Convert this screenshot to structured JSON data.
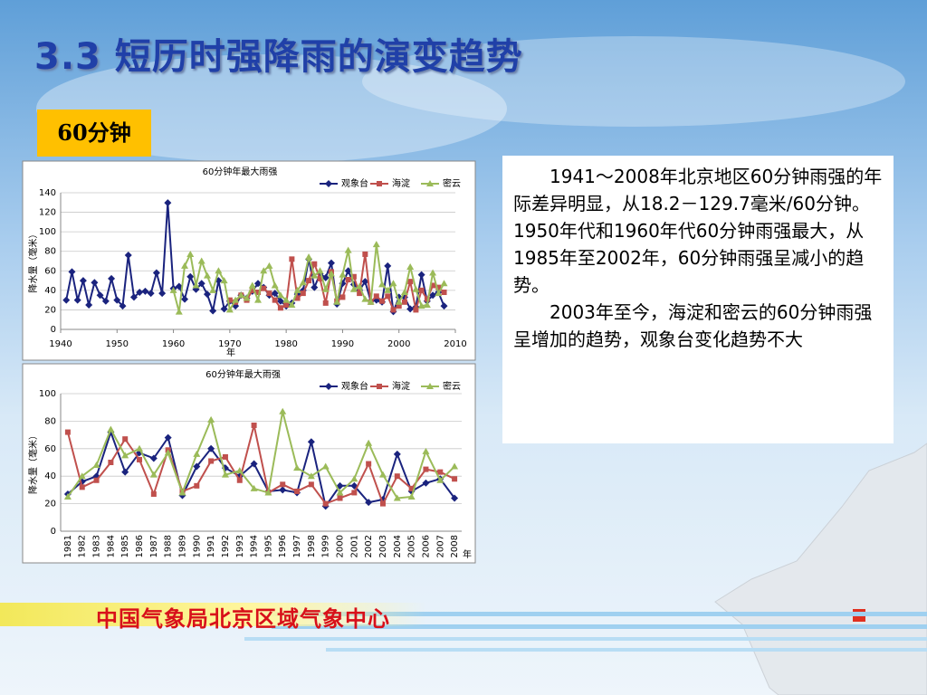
{
  "title": "3.3 短历时强降雨的演变趋势",
  "tag": "60分钟",
  "paragraphs": [
    "1941～2008年北京地区60分钟雨强的年际差异明显，从18.2－129.7毫米/60分钟。1950年代和1960年代60分钟雨强最大，从1985年至2002年，60分钟雨强呈减小的趋势。",
    "2003年至今，海淀和密云的60分钟雨强呈增加的趋势，观象台变化趋势不大"
  ],
  "footer": "中国气象局北京区域气象中心",
  "chart_data": [
    {
      "type": "line",
      "title": "60分钟年最大雨强",
      "x_label": "年",
      "y_label": "降水量（毫米）",
      "x": [
        1941,
        1942,
        1943,
        1944,
        1945,
        1946,
        1947,
        1948,
        1949,
        1950,
        1951,
        1952,
        1953,
        1954,
        1955,
        1956,
        1957,
        1958,
        1959,
        1960,
        1961,
        1962,
        1963,
        1964,
        1965,
        1966,
        1967,
        1968,
        1969,
        1970,
        1971,
        1972,
        1973,
        1974,
        1975,
        1976,
        1977,
        1978,
        1979,
        1980,
        1981,
        1982,
        1983,
        1984,
        1985,
        1986,
        1987,
        1988,
        1989,
        1990,
        1991,
        1992,
        1993,
        1994,
        1995,
        1996,
        1997,
        1998,
        1999,
        2000,
        2001,
        2002,
        2003,
        2004,
        2005,
        2006,
        2007,
        2008
      ],
      "xlim": [
        1940,
        2010
      ],
      "xticks": [
        1940,
        1950,
        1960,
        1970,
        1980,
        1990,
        2000,
        2010
      ],
      "ylim": [
        0,
        140
      ],
      "yticks": [
        0,
        20,
        40,
        60,
        80,
        100,
        120,
        140
      ],
      "grid": true,
      "legend": "top-right",
      "series": [
        {
          "name": "观象台",
          "color": "#1a237e",
          "marker": "diamond",
          "values": [
            30,
            59,
            30,
            50,
            25,
            48,
            35,
            29,
            52,
            30,
            24,
            76,
            33,
            38,
            39,
            37,
            58,
            37,
            129.7,
            42,
            44,
            31,
            54,
            41,
            47,
            36,
            19,
            50,
            21,
            29,
            24,
            35,
            32,
            39,
            47,
            43,
            35,
            37,
            29,
            24,
            27,
            36,
            40,
            72,
            43,
            57,
            53,
            68,
            26,
            47,
            60,
            46,
            40,
            49,
            29,
            30,
            28,
            65,
            18.2,
            33,
            33,
            21,
            23,
            56,
            29,
            35,
            38,
            24
          ]
        },
        {
          "name": "海淀",
          "color": "#c0504d",
          "marker": "square",
          "values": [
            null,
            null,
            null,
            null,
            null,
            null,
            null,
            null,
            null,
            null,
            null,
            null,
            null,
            null,
            null,
            null,
            null,
            null,
            null,
            null,
            null,
            null,
            null,
            null,
            null,
            null,
            null,
            null,
            null,
            30,
            28,
            35,
            30,
            40,
            38,
            42,
            37,
            30,
            22,
            25,
            72,
            32,
            37,
            50,
            67,
            52,
            27,
            59,
            29,
            33,
            51,
            54,
            37,
            77,
            28,
            34,
            29,
            34,
            20,
            24,
            28,
            49,
            20,
            40,
            31,
            45,
            43,
            38
          ]
        },
        {
          "name": "密云",
          "color": "#9bbb59",
          "marker": "triangle",
          "values": [
            null,
            null,
            null,
            null,
            null,
            null,
            null,
            null,
            null,
            null,
            null,
            null,
            null,
            null,
            null,
            null,
            null,
            null,
            null,
            40,
            18,
            65,
            77,
            45,
            70,
            55,
            40,
            60,
            50,
            20,
            30,
            35,
            32,
            45,
            30,
            60,
            65,
            45,
            35,
            30,
            25,
            40,
            48,
            74,
            55,
            60,
            41,
            57,
            28,
            56,
            81,
            41,
            44,
            31,
            28,
            87,
            46,
            40,
            47,
            28,
            38,
            64,
            41,
            24,
            25,
            58,
            37,
            47
          ]
        }
      ]
    },
    {
      "type": "line",
      "title": "60分钟年最大雨强",
      "x_label": "年",
      "y_label": "降水量（毫米）",
      "categories": [
        "1981",
        "1982",
        "1983",
        "1984",
        "1985",
        "1986",
        "1987",
        "1988",
        "1989",
        "1990",
        "1991",
        "1992",
        "1993",
        "1994",
        "1995",
        "1996",
        "1997",
        "1998",
        "1999",
        "2000",
        "2001",
        "2002",
        "2003",
        "2004",
        "2005",
        "2006",
        "2007",
        "2008"
      ],
      "ylim": [
        0,
        100
      ],
      "yticks": [
        0,
        20,
        40,
        60,
        80,
        100
      ],
      "grid": true,
      "legend": "top-right",
      "series": [
        {
          "name": "观象台",
          "color": "#1a237e",
          "marker": "diamond",
          "values": [
            27,
            36,
            40,
            72,
            43,
            57,
            53,
            68,
            26,
            47,
            60,
            46,
            40,
            49,
            29,
            30,
            28,
            65,
            18.2,
            33,
            33,
            21,
            23,
            56,
            29,
            35,
            38,
            24
          ]
        },
        {
          "name": "海淀",
          "color": "#c0504d",
          "marker": "square",
          "values": [
            72,
            32,
            37,
            50,
            67,
            52,
            27,
            59,
            29,
            33,
            51,
            54,
            37,
            77,
            28,
            34,
            29,
            34,
            20,
            24,
            28,
            49,
            20,
            40,
            31,
            45,
            43,
            38
          ]
        },
        {
          "name": "密云",
          "color": "#9bbb59",
          "marker": "triangle",
          "values": [
            25,
            40,
            48,
            74,
            55,
            60,
            41,
            57,
            28,
            56,
            81,
            41,
            44,
            31,
            28,
            87,
            46,
            40,
            47,
            28,
            38,
            64,
            41,
            24,
            25,
            58,
            37,
            47
          ]
        }
      ]
    }
  ]
}
